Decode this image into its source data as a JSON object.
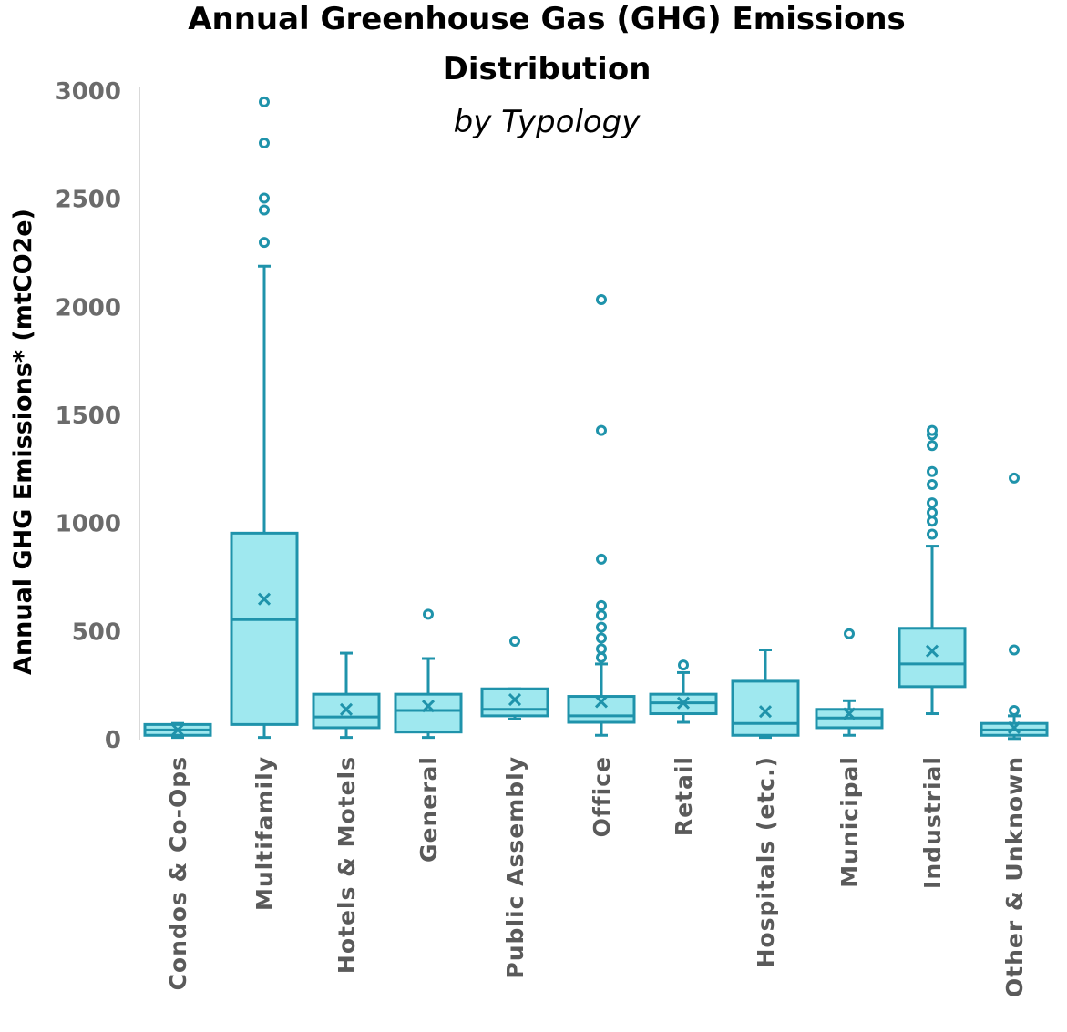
{
  "chart_data": {
    "type": "boxplot",
    "title": "Annual Greenhouse Gas (GHG) Emissions Distribution",
    "subtitle": "by Typology",
    "ylabel": "Annual GHG Emissions* (mtCO2e)",
    "xlabel": "",
    "ylim": [
      0,
      3000
    ],
    "yticks": [
      "0",
      "500",
      "1000",
      "1500",
      "2000",
      "2500",
      "3000"
    ],
    "grid": false,
    "colors": {
      "box_fill": "#9fe8ef",
      "box_stroke": "#1f93ab",
      "outlier": "#1f93ab"
    },
    "categories": [
      "Condos & Co-Ops",
      "Multifamily",
      "Hotels & Motels",
      "General",
      "Public Assembly",
      "Office",
      "Retail",
      "Hospitals (etc.)",
      "Municipal",
      "Industrial",
      "Other & Unknown"
    ],
    "boxes": [
      {
        "category": "Condos & Co-Ops",
        "whisker_low": 10,
        "q1": 20,
        "median": 45,
        "q3": 70,
        "whisker_high": 75,
        "mean": 45,
        "outliers": []
      },
      {
        "category": "Multifamily",
        "whisker_low": 10,
        "q1": 70,
        "median": 555,
        "q3": 955,
        "whisker_high": 2190,
        "mean": 650,
        "outliers": [
          2300,
          2450,
          2505,
          2760,
          2950
        ]
      },
      {
        "category": "Hotels & Motels",
        "whisker_low": 10,
        "q1": 55,
        "median": 105,
        "q3": 210,
        "whisker_high": 400,
        "mean": 140,
        "outliers": []
      },
      {
        "category": "General",
        "whisker_low": 10,
        "q1": 35,
        "median": 135,
        "q3": 210,
        "whisker_high": 375,
        "mean": 155,
        "outliers": [
          580
        ]
      },
      {
        "category": "Public Assembly",
        "whisker_low": 95,
        "q1": 110,
        "median": 140,
        "q3": 235,
        "whisker_high": 235,
        "mean": 185,
        "outliers": [
          455
        ]
      },
      {
        "category": "Office",
        "whisker_low": 20,
        "q1": 80,
        "median": 110,
        "q3": 200,
        "whisker_high": 350,
        "mean": 175,
        "outliers": [
          380,
          420,
          470,
          520,
          575,
          620,
          835,
          1430,
          2035
        ]
      },
      {
        "category": "Retail",
        "whisker_low": 80,
        "q1": 120,
        "median": 170,
        "q3": 210,
        "whisker_high": 310,
        "mean": 170,
        "outliers": [
          345
        ]
      },
      {
        "category": "Hospitals (etc.)",
        "whisker_low": 10,
        "q1": 20,
        "median": 75,
        "q3": 270,
        "whisker_high": 415,
        "mean": 130,
        "outliers": []
      },
      {
        "category": "Municipal",
        "whisker_low": 20,
        "q1": 55,
        "median": 100,
        "q3": 140,
        "whisker_high": 180,
        "mean": 120,
        "outliers": [
          490
        ]
      },
      {
        "category": "Industrial",
        "whisker_low": 120,
        "q1": 245,
        "median": 350,
        "q3": 515,
        "whisker_high": 895,
        "mean": 410,
        "outliers": [
          950,
          1010,
          1050,
          1095,
          1180,
          1240,
          1360,
          1410,
          1430
        ]
      },
      {
        "category": "Other & Unknown",
        "whisker_low": 5,
        "q1": 20,
        "median": 45,
        "q3": 75,
        "whisker_high": 110,
        "mean": 55,
        "outliers": [
          135,
          415,
          1210
        ]
      }
    ]
  }
}
